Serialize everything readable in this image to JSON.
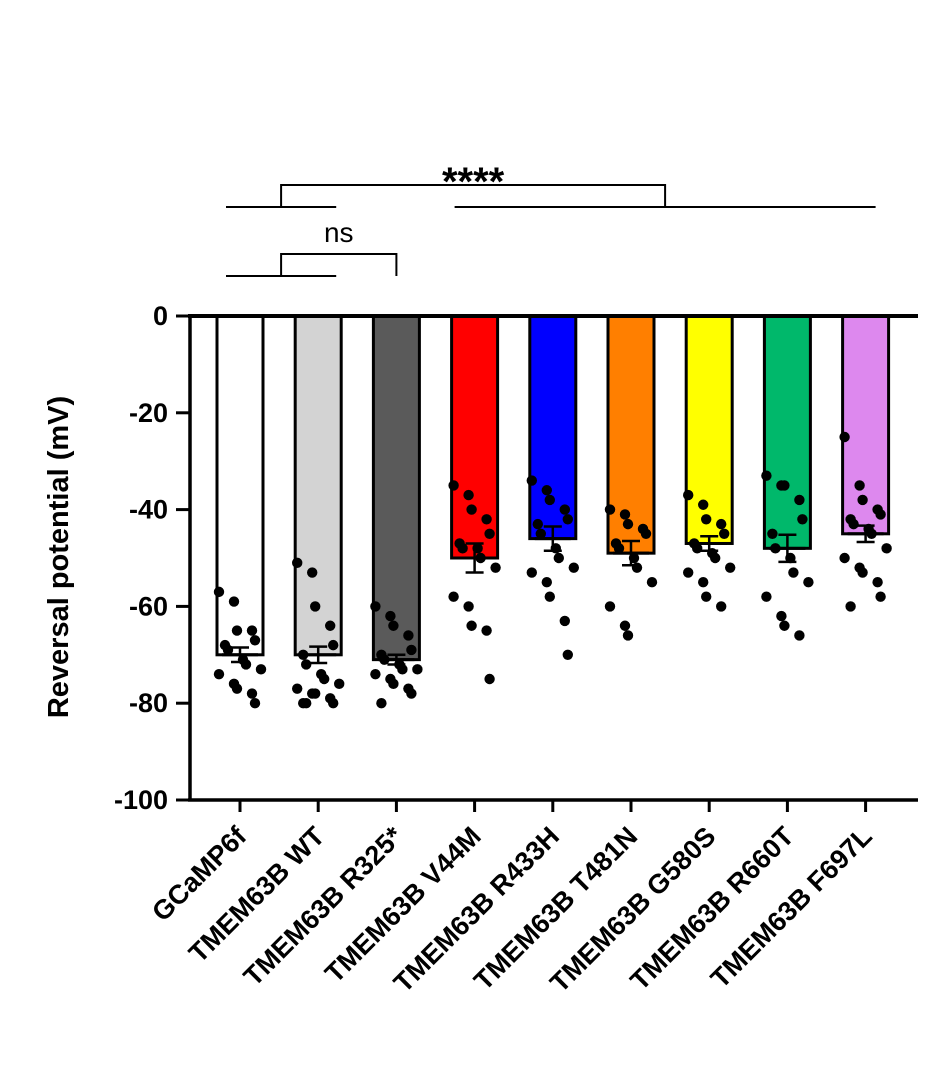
{
  "chart_data": {
    "type": "bar",
    "title": "",
    "xlabel": "",
    "ylabel": "Reversal potential (mV)",
    "ylim": [
      -100,
      0
    ],
    "yticks": [
      0,
      -20,
      -40,
      -60,
      -80,
      -100
    ],
    "grid": false,
    "categories": [
      "GCaMP6f",
      "TMEM63B WT",
      "TMEM63B R325*",
      "TMEM63B V44M",
      "TMEM63B R433H",
      "TMEM63B T481N",
      "TMEM63B G580S",
      "TMEM63B R660T",
      "TMEM63B F697L"
    ],
    "colors": [
      "#ffffff",
      "#d3d3d3",
      "#5a5a5a",
      "#ff0000",
      "#0000ff",
      "#ff7f00",
      "#ffff00",
      "#00b86b",
      "#dd88ee"
    ],
    "values": [
      -70,
      -70,
      -71,
      -50,
      -46,
      -49,
      -47,
      -48,
      -45
    ],
    "sem": [
      1.5,
      1.7,
      1.0,
      3.0,
      2.5,
      2.5,
      1.5,
      2.8,
      1.7
    ],
    "points": [
      [
        -57,
        -59,
        -65,
        -65,
        -67,
        -68,
        -69,
        -71,
        -72,
        -73,
        -74,
        -76,
        -77,
        -78,
        -80
      ],
      [
        -51,
        -53,
        -60,
        -64,
        -68,
        -70,
        -72,
        -74,
        -75,
        -76,
        -77,
        -78,
        -78,
        -79,
        -80,
        -80,
        -80
      ],
      [
        -60,
        -62,
        -64,
        -66,
        -69,
        -70,
        -71,
        -72,
        -73,
        -73,
        -74,
        -75,
        -76,
        -77,
        -78,
        -80
      ],
      [
        -35,
        -37,
        -40,
        -42,
        -45,
        -47,
        -48,
        -48,
        -50,
        -52,
        -58,
        -60,
        -64,
        -65,
        -75
      ],
      [
        -34,
        -36,
        -38,
        -40,
        -42,
        -43,
        -45,
        -48,
        -50,
        -52,
        -53,
        -55,
        -58,
        -63,
        -70
      ],
      [
        -40,
        -41,
        -43,
        -44,
        -45,
        -47,
        -48,
        -50,
        -52,
        -55,
        -60,
        -64,
        -66
      ],
      [
        -37,
        -39,
        -42,
        -43,
        -45,
        -47,
        -48,
        -49,
        -50,
        -52,
        -53,
        -55,
        -58,
        -60
      ],
      [
        -33,
        -35,
        -35,
        -38,
        -42,
        -45,
        -48,
        -50,
        -53,
        -55,
        -58,
        -62,
        -64,
        -66
      ],
      [
        -25,
        -35,
        -38,
        -40,
        -41,
        -42,
        -43,
        -44,
        -45,
        -48,
        -50,
        -52,
        -53,
        -55,
        -58,
        -60
      ]
    ],
    "significance": [
      {
        "label": "****",
        "group_a": [
          0,
          1
        ],
        "group_b": [
          3,
          8
        ]
      },
      {
        "label": "ns",
        "group_a": [
          0,
          1
        ],
        "group_b": [
          2,
          2
        ]
      }
    ]
  }
}
